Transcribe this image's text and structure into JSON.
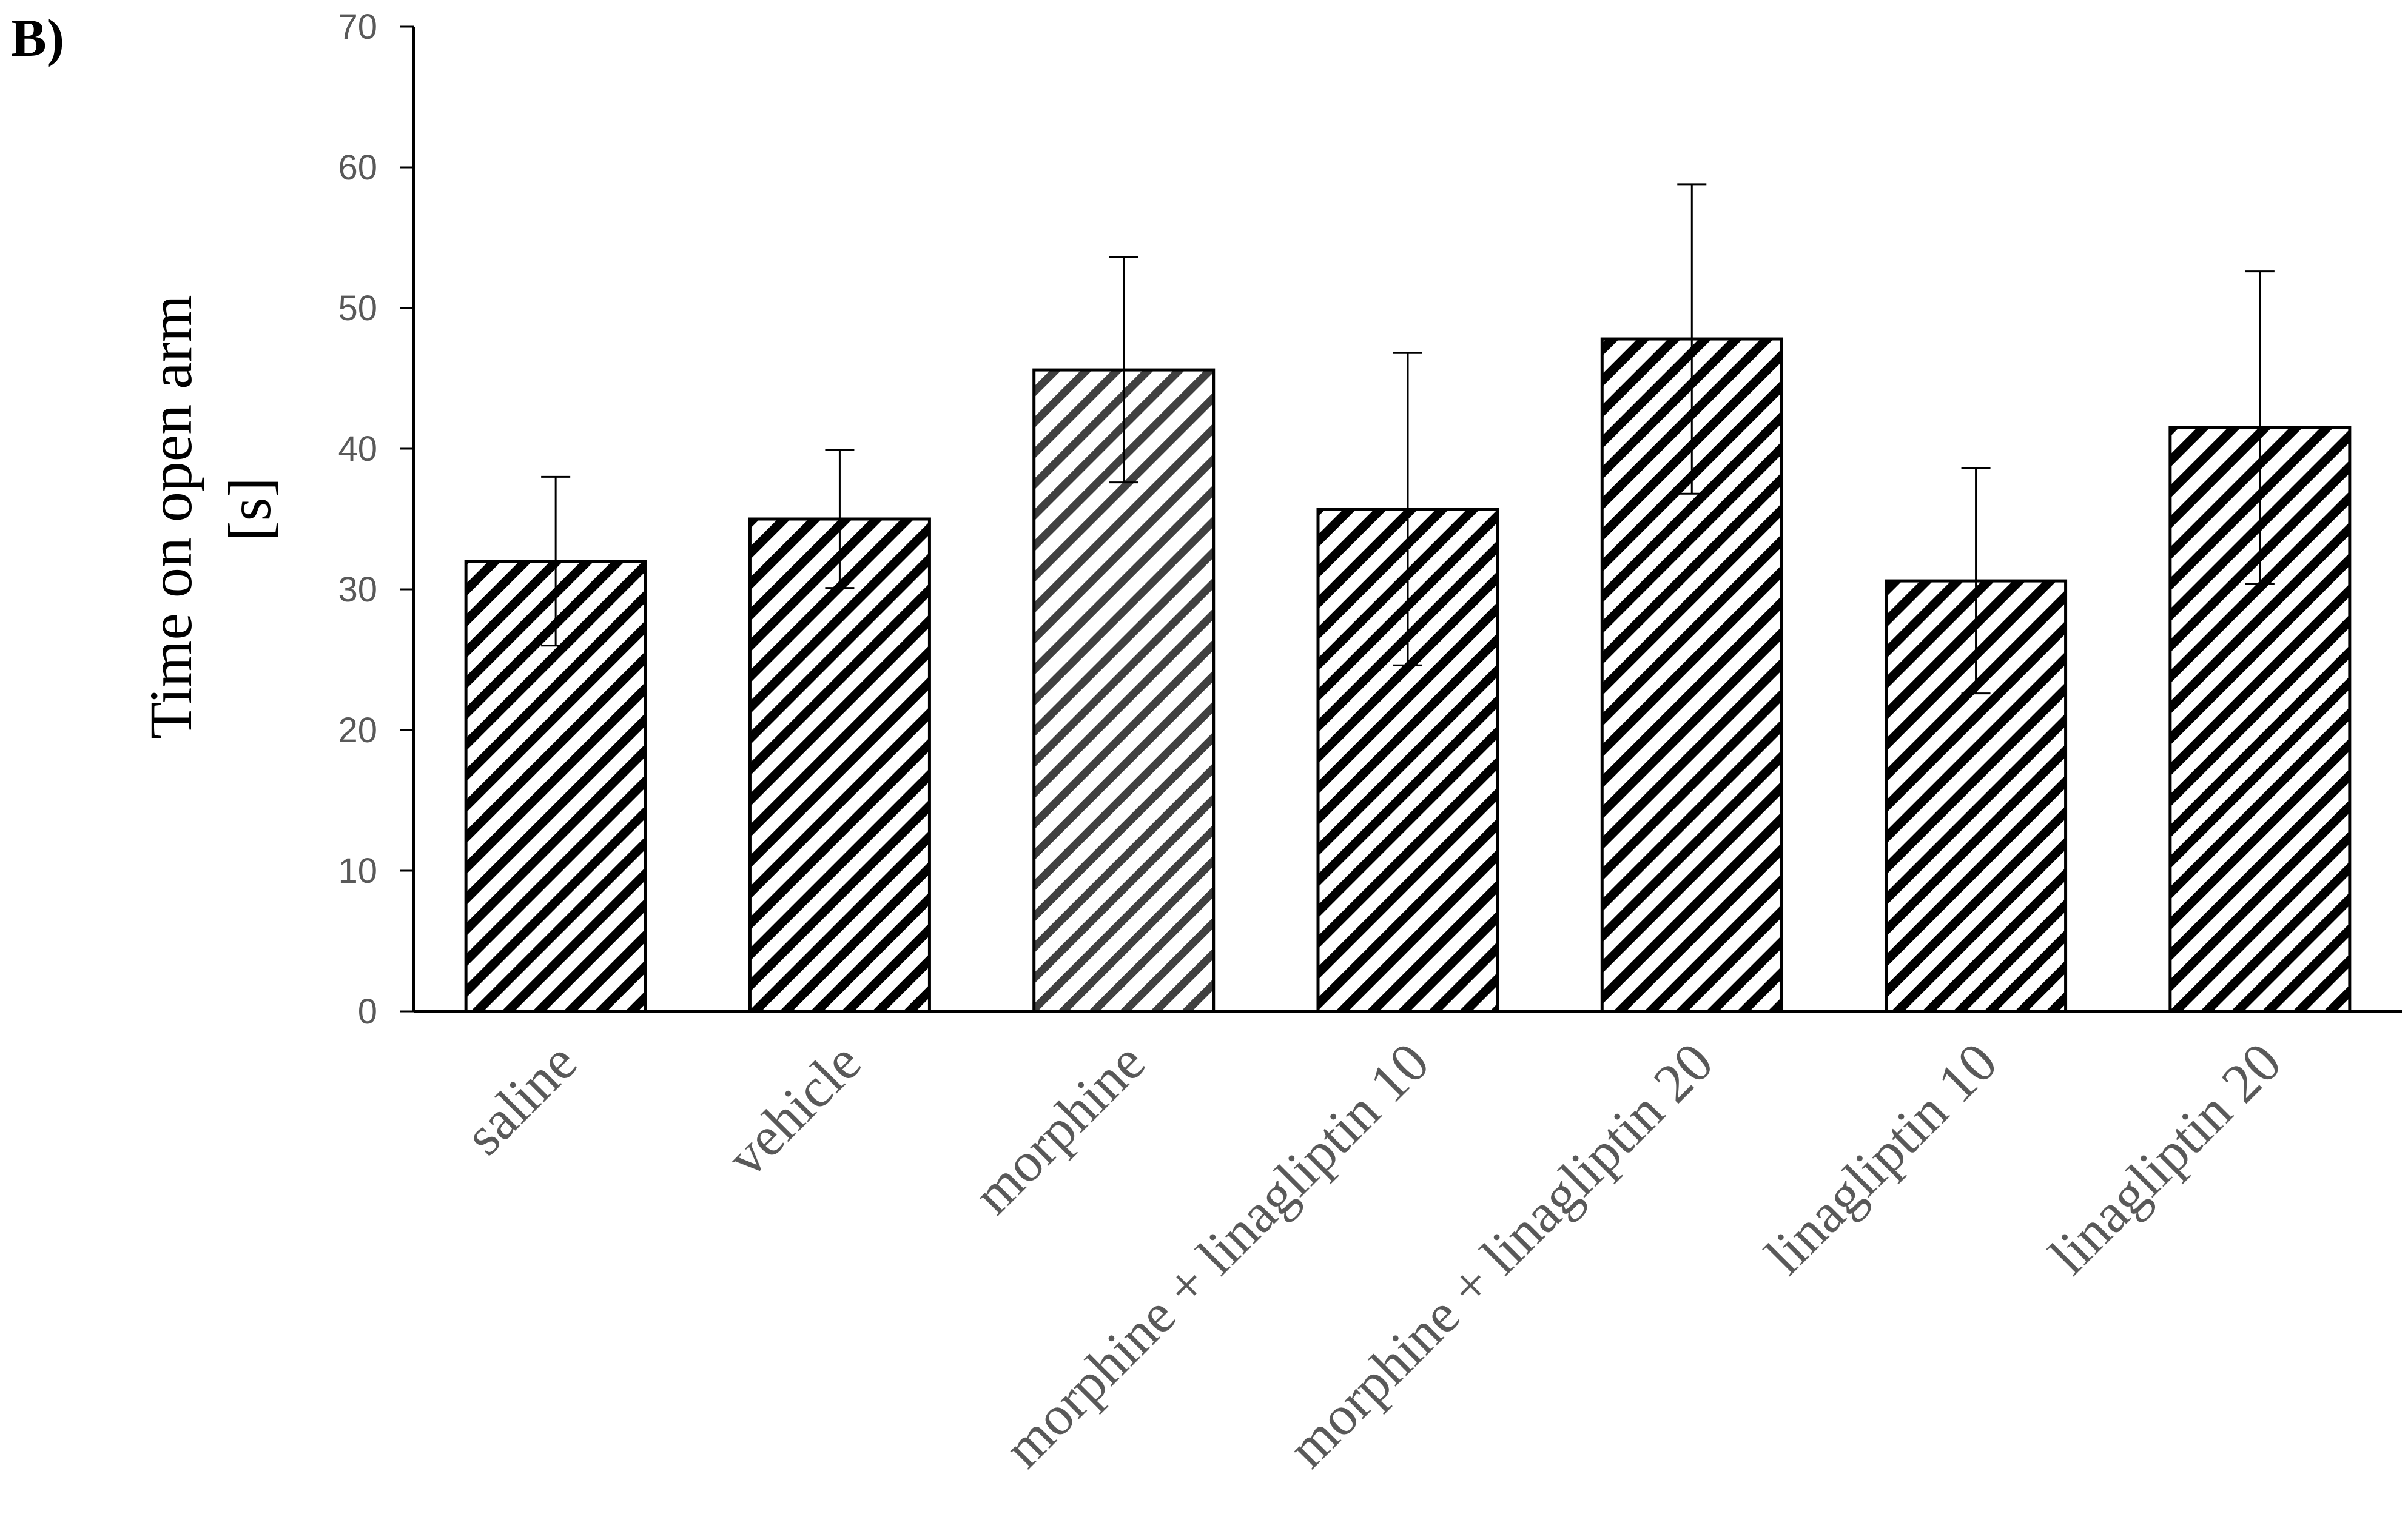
{
  "panel_label": "B)",
  "chart_data": {
    "type": "bar",
    "title": "",
    "xlabel": "",
    "ylabel_lines": [
      "Time on open arm",
      "[s]"
    ],
    "ylim": [
      0,
      70
    ],
    "yticks": [
      0,
      10,
      20,
      30,
      40,
      50,
      60,
      70
    ],
    "categories": [
      "saline",
      "vehicle",
      "morphine",
      "morphine + linagliptin 10",
      "morphine + linagliptin 20",
      "linagliptin 10",
      "linagliptin 20"
    ],
    "values": [
      32,
      35,
      45.6,
      35.7,
      47.8,
      30.6,
      41.5
    ],
    "errors": [
      6,
      4.9,
      8,
      11.1,
      11,
      8,
      11.1
    ],
    "grid": false,
    "legend": "none",
    "colors": {
      "bar_fill": "#ffffff",
      "hatch_dark": "#000000",
      "hatch_light": "#404040",
      "bar_border": "#000000",
      "axis": "#000000",
      "error_bar": "#000000"
    }
  }
}
